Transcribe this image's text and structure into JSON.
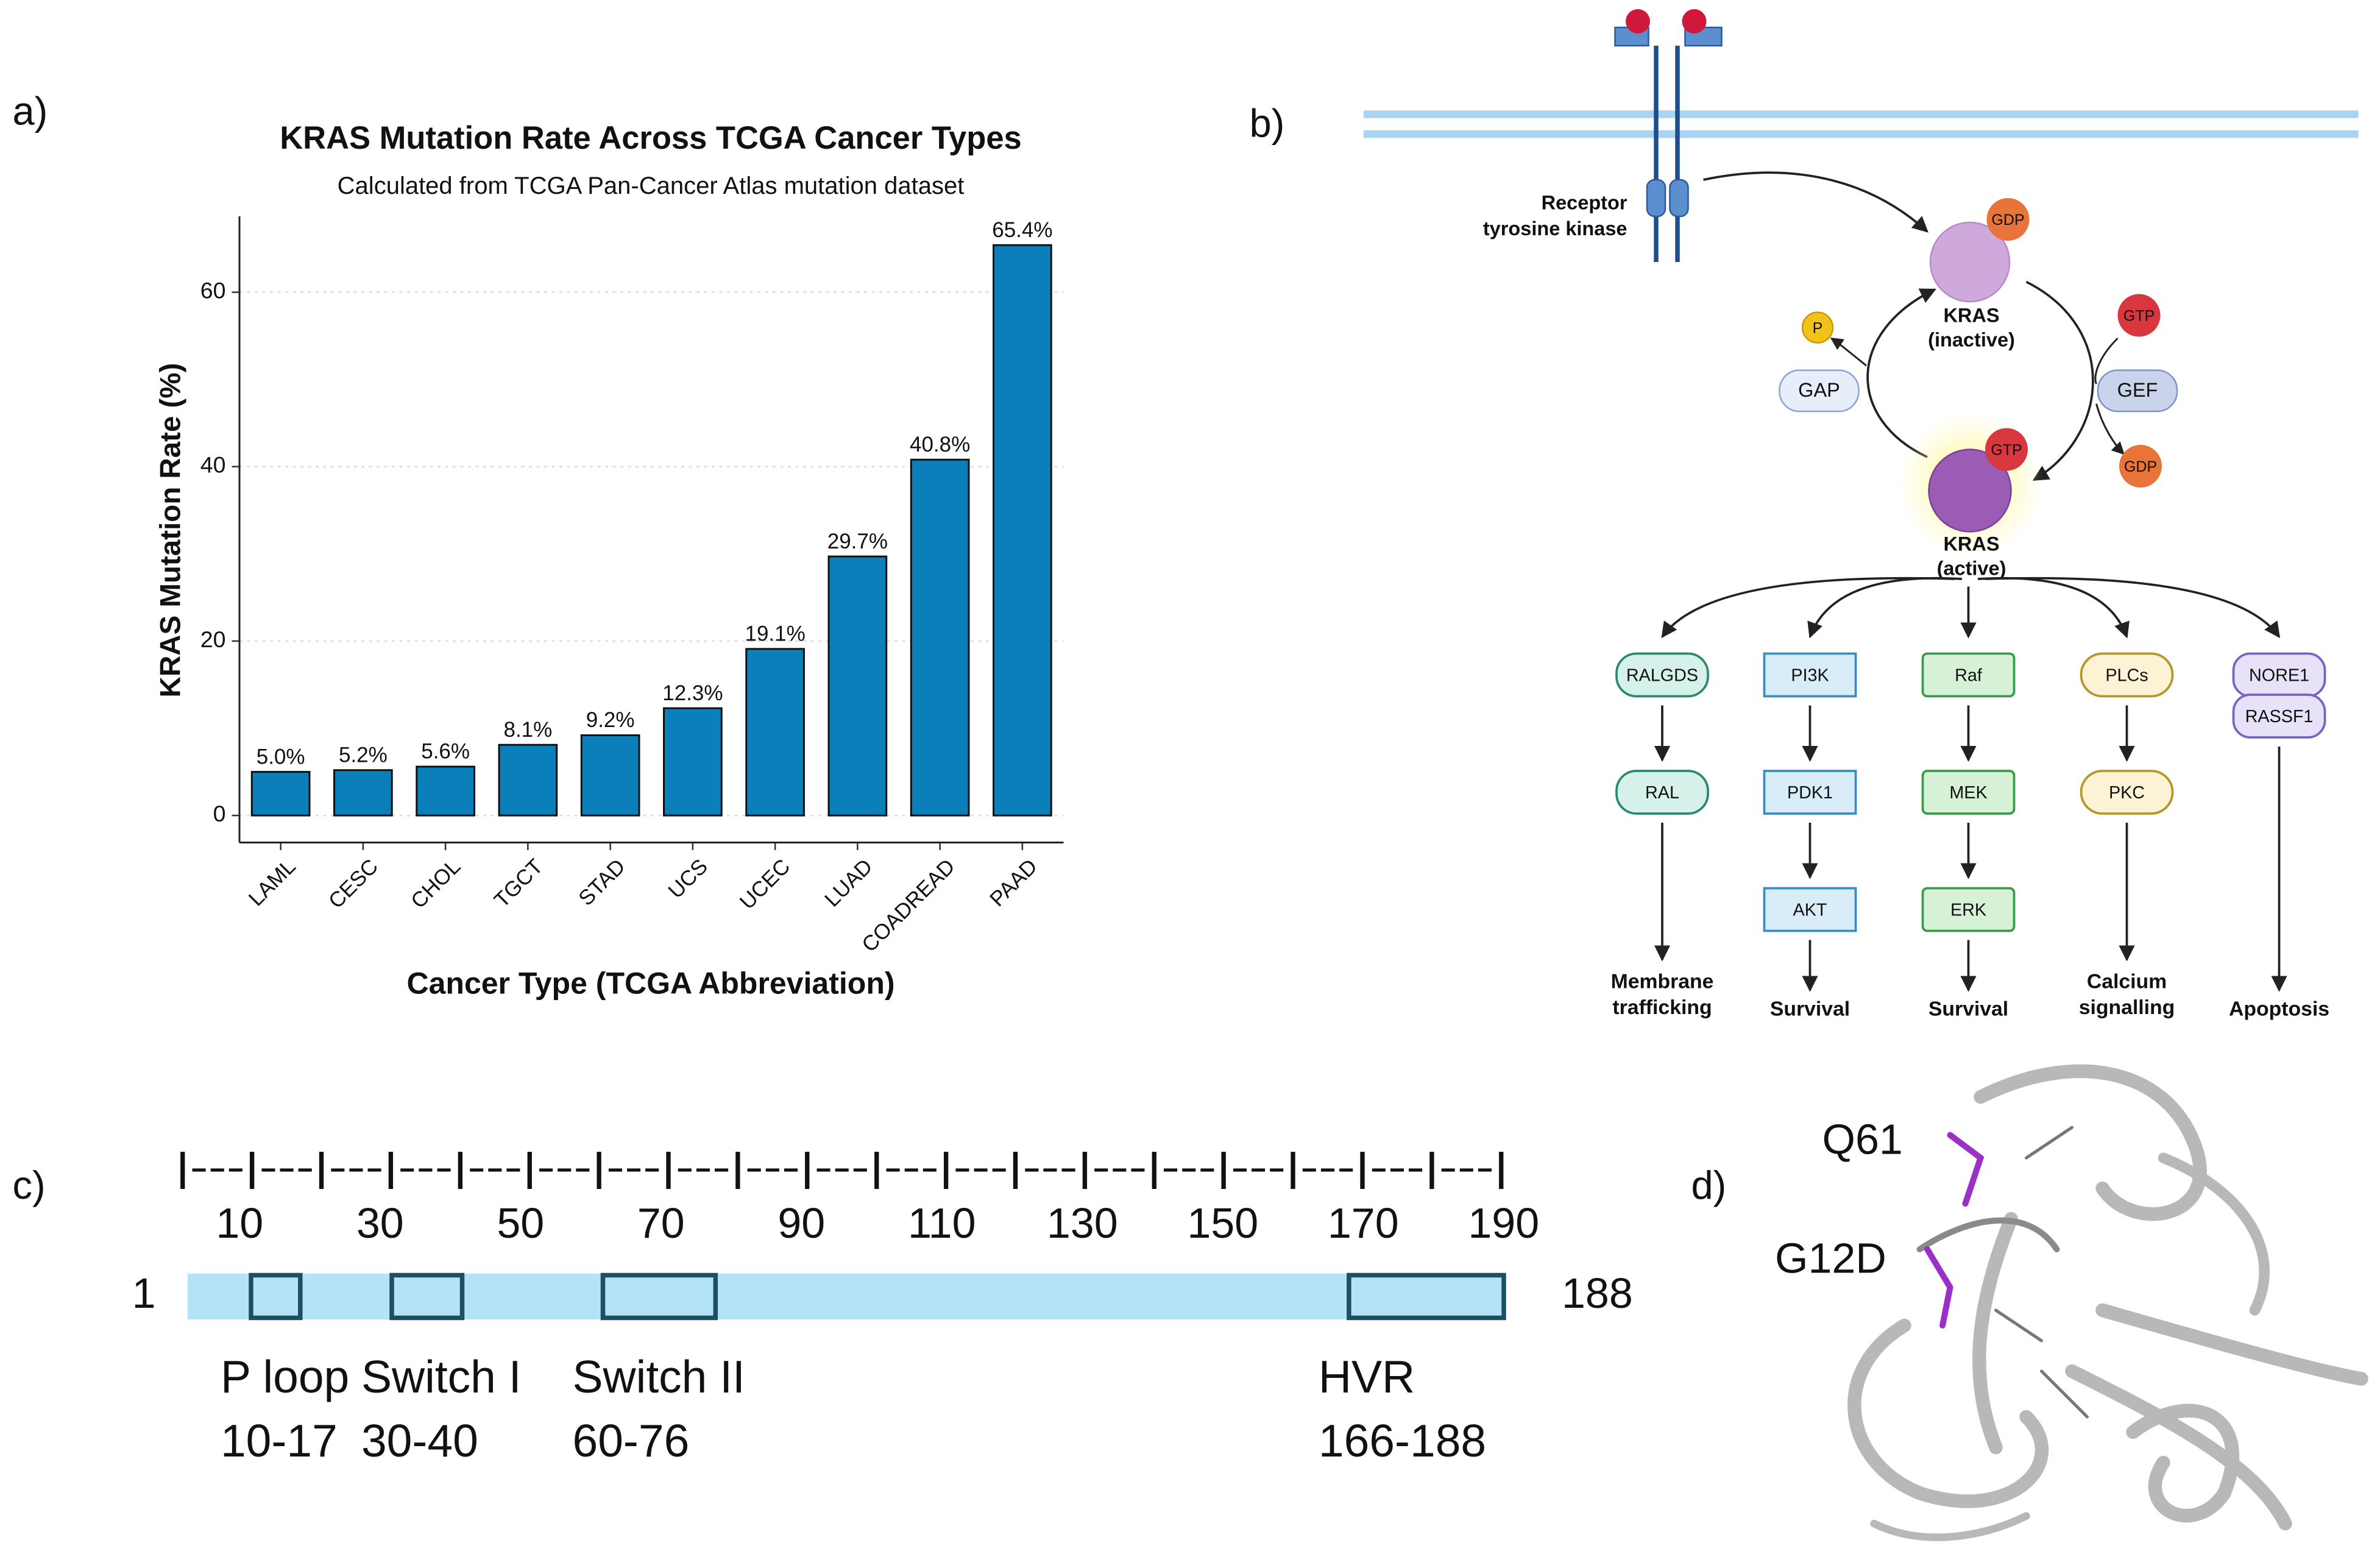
{
  "panel_labels": [
    "a)",
    "b)",
    "c)",
    "d)"
  ],
  "chart_data": {
    "type": "bar",
    "title": "KRAS Mutation Rate Across TCGA Cancer Types",
    "subtitle": "Calculated from TCGA Pan-Cancer Atlas mutation dataset",
    "x_label": "Cancer Type (TCGA Abbreviation)",
    "y_label": "KRAS Mutation Rate (%)",
    "categories": [
      "LAML",
      "CESC",
      "CHOL",
      "TGCT",
      "STAD",
      "UCS",
      "UCEC",
      "LUAD",
      "COADREAD",
      "PAAD"
    ],
    "values": [
      5.0,
      5.2,
      5.6,
      8.1,
      9.2,
      12.3,
      19.1,
      29.7,
      40.8,
      65.4
    ],
    "value_labels": [
      "5.0%",
      "5.2%",
      "5.6%",
      "8.1%",
      "9.2%",
      "12.3%",
      "19.1%",
      "29.7%",
      "40.8%",
      "65.4%"
    ],
    "color": "#0a7fba",
    "ylim": [
      -3.1,
      68.7
    ],
    "yticks": [
      0,
      20,
      40,
      60
    ],
    "grid": true
  },
  "pathway": {
    "receptor": [
      "Receptor",
      "tyrosine kinase"
    ],
    "kras_inactive": {
      "label": [
        "KRAS",
        "(inactive)"
      ],
      "nucleotide": "GDP"
    },
    "kras_active": {
      "label": [
        "KRAS",
        "(active)"
      ],
      "nucleotide": "GTP"
    },
    "phosphate": "P",
    "gap": "GAP",
    "gef": "GEF",
    "gef_in": "GTP",
    "gef_out": "GDP",
    "branches": [
      {
        "nodes": [
          "RALGDS",
          "RAL"
        ],
        "outcome": [
          "Membrane",
          "trafficking"
        ]
      },
      {
        "nodes": [
          "PI3K",
          "PDK1",
          "AKT"
        ],
        "outcome": [
          "Survival"
        ]
      },
      {
        "nodes": [
          "Raf",
          "MEK",
          "ERK"
        ],
        "outcome": [
          "Survival"
        ]
      },
      {
        "nodes": [
          "PLCs",
          "PKC"
        ],
        "outcome": [
          "Calcium",
          "signalling"
        ]
      },
      {
        "nodes": [
          "NORE1",
          "RASSF1"
        ],
        "outcome": [
          "Apoptosis"
        ]
      }
    ]
  },
  "domains": {
    "ruler": "|---|---|---|---|---|---|---|---|---|---|---|---|---|---|---|---|---|---|---|",
    "scale_labels": [
      10,
      30,
      50,
      70,
      90,
      110,
      130,
      150,
      170,
      190
    ],
    "sequence_start": 1,
    "sequence_end": 188,
    "regions": [
      {
        "name": "P loop",
        "range": "10-17",
        "start": 10,
        "end": 17
      },
      {
        "name": "Switch I",
        "range": "30-40",
        "start": 30,
        "end": 40
      },
      {
        "name": "Switch II",
        "range": "60-76",
        "start": 60,
        "end": 76
      },
      {
        "name": "HVR",
        "range": "166-188",
        "start": 166,
        "end": 188
      }
    ]
  },
  "structure": {
    "labels": [
      "Q61",
      "G12D"
    ]
  }
}
